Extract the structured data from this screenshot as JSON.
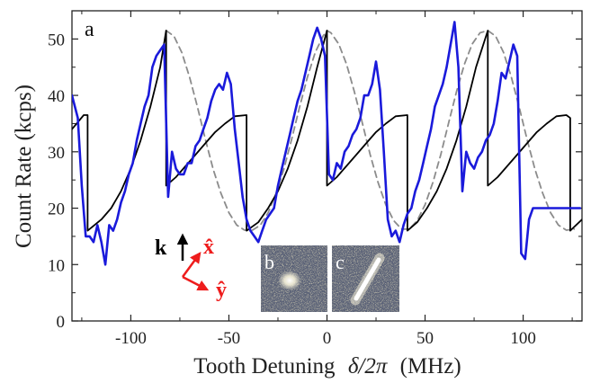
{
  "chart_data": {
    "type": "line",
    "panel_label": "a",
    "xlabel": {
      "prefix": "Tooth Detuning",
      "symbol": "δ/2π",
      "unit": "(MHz)"
    },
    "ylabel": "Count Rate (kcps)",
    "xlim": [
      -130,
      130
    ],
    "ylim": [
      0,
      55
    ],
    "x_ticks": [
      -100,
      -50,
      0,
      50,
      100
    ],
    "x_tick_labels": [
      "-100",
      "-50",
      "0",
      "50",
      "100"
    ],
    "y_ticks": [
      0,
      10,
      20,
      30,
      40,
      50
    ],
    "y_tick_labels": [
      "0",
      "10",
      "20",
      "30",
      "40",
      "50"
    ],
    "grid": false,
    "colors": {
      "measured": "#1a1adb",
      "model": "#000000",
      "reference": "#8c8c8c",
      "inset_bg": "#5c6478",
      "vector_red": "#ee1c1c",
      "vector_black": "#000000"
    },
    "series": [
      {
        "style": "solid-blue",
        "x": [
          -130,
          -127,
          -125,
          -123,
          -121,
          -119,
          -117,
          -115,
          -113,
          -111,
          -109,
          -107,
          -105,
          -103,
          -101,
          -99,
          -97,
          -95,
          -93,
          -91,
          -89,
          -87,
          -85,
          -83,
          -81,
          -79,
          -77,
          -75,
          -73,
          -71,
          -69,
          -67,
          -65,
          -63,
          -61,
          -59,
          -57,
          -55,
          -53,
          -51,
          -49,
          -47,
          -45,
          -43,
          -41,
          -39,
          -37,
          -35,
          -33,
          -31,
          -29,
          -27,
          -25,
          -23,
          -21,
          -19,
          -17,
          -15,
          -13,
          -11,
          -9,
          -7,
          -5,
          -3,
          -1,
          1,
          3,
          5,
          7,
          9,
          11,
          13,
          15,
          17,
          19,
          21,
          23,
          25,
          27,
          29,
          31,
          33,
          35,
          37,
          39,
          41,
          43,
          45,
          47,
          49,
          51,
          53,
          55,
          57,
          59,
          61,
          63,
          65,
          67,
          69,
          71,
          73,
          75,
          77,
          79,
          81,
          83,
          85,
          87,
          89,
          91,
          93,
          95,
          97,
          99,
          101,
          103,
          105,
          107,
          109,
          111,
          113,
          115,
          117,
          119,
          121,
          123,
          125,
          127,
          129
        ],
        "y": [
          40,
          36,
          24,
          15,
          15,
          14,
          17,
          14,
          10,
          17,
          16,
          18,
          21,
          23,
          26,
          28,
          32,
          35,
          38,
          40,
          45,
          47,
          48,
          49,
          22,
          30,
          27,
          26,
          26,
          28,
          28,
          31,
          32,
          34,
          36,
          39,
          41,
          42,
          41,
          44,
          42,
          34,
          28,
          22,
          18,
          16,
          15,
          14,
          16,
          18,
          19,
          20,
          24,
          27,
          30,
          33,
          36,
          39,
          41,
          44,
          47,
          50,
          52,
          50,
          47,
          26,
          25,
          28,
          27,
          30,
          31,
          33,
          34,
          36,
          40,
          40,
          42,
          46,
          41,
          30,
          18,
          15,
          16,
          14,
          17,
          19,
          20,
          23,
          25,
          28,
          31,
          34,
          38,
          40,
          42,
          45,
          49,
          53,
          45,
          23,
          30,
          28,
          27,
          29,
          30,
          32,
          33,
          35,
          39,
          44,
          43,
          46,
          49,
          47,
          12,
          11,
          18,
          20,
          20,
          20,
          20,
          20,
          20,
          20,
          20,
          20,
          20,
          20,
          20,
          20
        ]
      },
      {
        "style": "solid-black",
        "x": [
          -130,
          -124,
          -122,
          -122,
          -115,
          -110,
          -105,
          -100,
          -95,
          -90,
          -85,
          -82,
          -82,
          -77,
          -72,
          -67,
          -62,
          -57,
          -52,
          -47,
          -41,
          -41,
          -35,
          -30,
          -25,
          -20,
          -15,
          -10,
          -5,
          0,
          0,
          5,
          10,
          15,
          20,
          25,
          30,
          35,
          41,
          41,
          46,
          51,
          56,
          61,
          66,
          71,
          76,
          82,
          82,
          87,
          92,
          97,
          102,
          107,
          112,
          117,
          122,
          124,
          124,
          130
        ],
        "y": [
          34,
          36.5,
          36.5,
          16,
          18,
          20,
          23,
          27,
          32,
          38,
          45,
          51.5,
          24,
          25.5,
          27.5,
          29.5,
          31.5,
          33.5,
          35,
          36.3,
          36.5,
          16,
          17.5,
          20,
          23,
          27,
          32,
          38,
          45,
          51.5,
          24,
          25.5,
          27.5,
          29.5,
          31.5,
          33.5,
          35,
          36.3,
          36.5,
          16,
          17.5,
          20,
          23,
          27,
          32,
          38,
          45,
          51.5,
          24,
          25.5,
          27.5,
          29.5,
          31.5,
          33.5,
          35,
          36.3,
          36.5,
          36,
          16,
          18
        ]
      },
      {
        "style": "dashed-gray",
        "x": [
          -82,
          -78,
          -74,
          -70,
          -66,
          -62,
          -58,
          -54,
          -50,
          -46,
          -42,
          -38,
          -34,
          -30,
          -26,
          -22,
          -18,
          -14,
          -10,
          -6,
          -2,
          0,
          2,
          6,
          10,
          14,
          18,
          22,
          26,
          30,
          34,
          38,
          42,
          46,
          50,
          54,
          58,
          62,
          66,
          70,
          74,
          78,
          82,
          86,
          90,
          94,
          98,
          102,
          106,
          110,
          114,
          118,
          122,
          126
        ],
        "y": [
          51.5,
          50.5,
          47.6,
          43.2,
          37.9,
          32.2,
          26.9,
          22.6,
          19.2,
          17.0,
          16.1,
          16.1,
          17.0,
          19.2,
          22.6,
          26.9,
          32.2,
          37.9,
          43.2,
          47.6,
          50.5,
          51.5,
          51.1,
          49.1,
          45.5,
          40.6,
          35.1,
          29.5,
          24.6,
          20.6,
          17.8,
          16.3,
          16.3,
          17.8,
          20.6,
          24.6,
          29.5,
          35.1,
          40.6,
          45.5,
          49.1,
          51.1,
          51.5,
          50.5,
          47.6,
          43.2,
          37.9,
          32.2,
          26.9,
          22.6,
          19.2,
          17.0,
          16.1,
          16.3
        ]
      }
    ],
    "vector_labels": {
      "k": "k",
      "x": "x̂",
      "y": "ŷ"
    },
    "insets": [
      {
        "label": "b",
        "feature": "spot"
      },
      {
        "label": "c",
        "feature": "line"
      }
    ]
  }
}
